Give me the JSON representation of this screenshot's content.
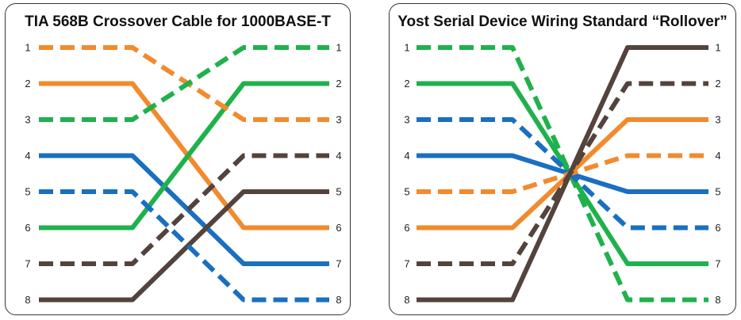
{
  "colors": {
    "orange": "#f28a2e",
    "green": "#1fb14c",
    "blue": "#1a6fc0",
    "brown": "#54433d"
  },
  "diagrams": [
    {
      "title": "TIA 568B Crossover Cable for 1000BASE-T",
      "pin_labels": [
        "1",
        "2",
        "3",
        "4",
        "5",
        "6",
        "7",
        "8"
      ],
      "wires": [
        {
          "color": "orange",
          "dashed": true,
          "from_pin": 1,
          "to_pin": 3
        },
        {
          "color": "orange",
          "dashed": false,
          "from_pin": 2,
          "to_pin": 6
        },
        {
          "color": "green",
          "dashed": true,
          "from_pin": 3,
          "to_pin": 1
        },
        {
          "color": "blue",
          "dashed": false,
          "from_pin": 4,
          "to_pin": 7
        },
        {
          "color": "blue",
          "dashed": true,
          "from_pin": 5,
          "to_pin": 8
        },
        {
          "color": "green",
          "dashed": false,
          "from_pin": 6,
          "to_pin": 2
        },
        {
          "color": "brown",
          "dashed": true,
          "from_pin": 7,
          "to_pin": 4
        },
        {
          "color": "brown",
          "dashed": false,
          "from_pin": 8,
          "to_pin": 5
        }
      ]
    },
    {
      "title": "Yost Serial Device Wiring Standard “Rollover”",
      "pin_labels": [
        "1",
        "2",
        "3",
        "4",
        "5",
        "6",
        "7",
        "8"
      ],
      "wires": [
        {
          "color": "green",
          "dashed": true,
          "from_pin": 1,
          "to_pin": 8
        },
        {
          "color": "green",
          "dashed": false,
          "from_pin": 2,
          "to_pin": 7
        },
        {
          "color": "blue",
          "dashed": true,
          "from_pin": 3,
          "to_pin": 6
        },
        {
          "color": "blue",
          "dashed": false,
          "from_pin": 4,
          "to_pin": 5
        },
        {
          "color": "orange",
          "dashed": true,
          "from_pin": 5,
          "to_pin": 4
        },
        {
          "color": "orange",
          "dashed": false,
          "from_pin": 6,
          "to_pin": 3
        },
        {
          "color": "brown",
          "dashed": true,
          "from_pin": 7,
          "to_pin": 2
        },
        {
          "color": "brown",
          "dashed": false,
          "from_pin": 8,
          "to_pin": 1
        }
      ]
    }
  ]
}
